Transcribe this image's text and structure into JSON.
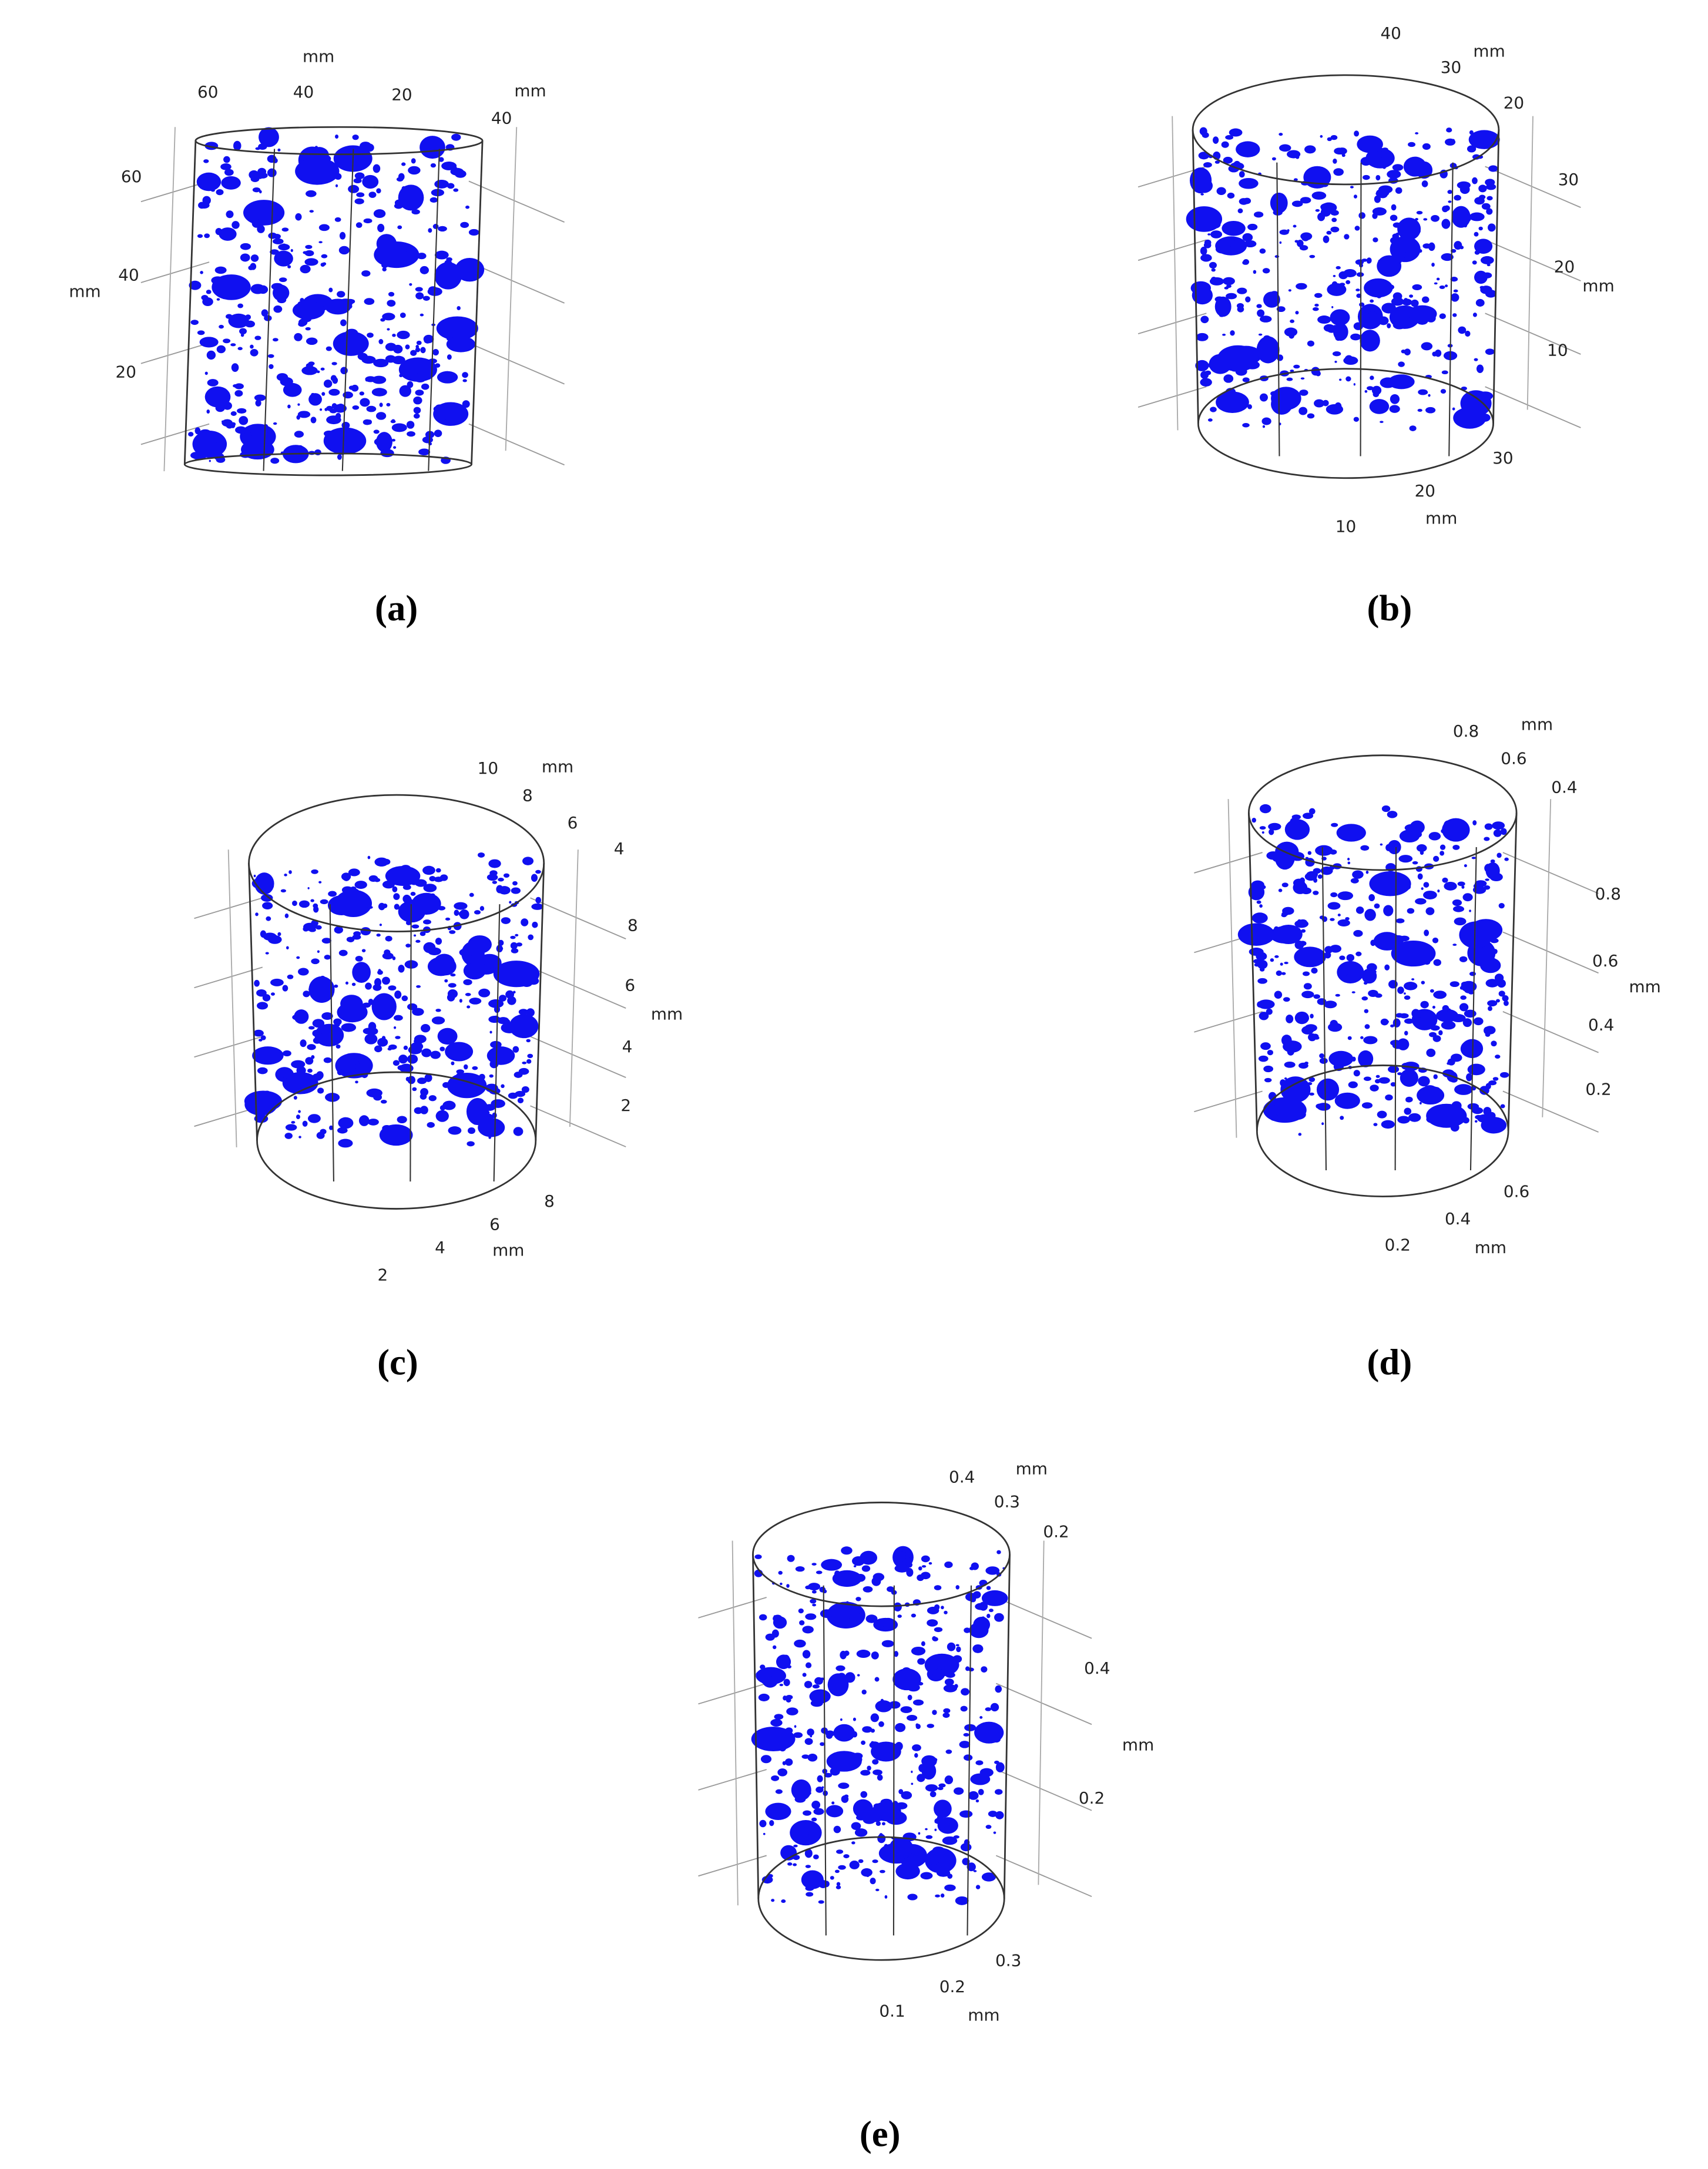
{
  "panels": [
    {
      "label": "(a)",
      "ticks": [
        "mm",
        "60",
        "40",
        "20",
        "mm",
        "40",
        "60",
        "40",
        "mm",
        "20"
      ]
    },
    {
      "label": "(b)",
      "ticks": [
        "40",
        "30",
        "mm",
        "20",
        "30",
        "20",
        "mm",
        "10",
        "30",
        "20",
        "mm",
        "10"
      ]
    },
    {
      "label": "(c)",
      "ticks": [
        "10",
        "mm",
        "8",
        "6",
        "4",
        "8",
        "mm",
        "6",
        "4",
        "2",
        "8",
        "6",
        "mm",
        "4",
        "2"
      ]
    },
    {
      "label": "(d)",
      "ticks": [
        "mm",
        "0.8",
        "0.6",
        "0.4",
        "0.8",
        "0.6",
        "mm",
        "0.4",
        "0.2",
        "0.6",
        "0.4",
        "mm",
        "0.2"
      ]
    },
    {
      "label": "(e)",
      "ticks": [
        "0.4",
        "mm",
        "0.3",
        "0.2",
        "0.4",
        "mm",
        "0.2",
        "0.3",
        "0.2",
        "0.1",
        "mm"
      ]
    }
  ]
}
